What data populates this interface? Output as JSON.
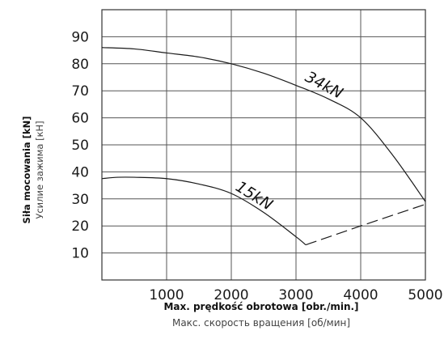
{
  "chart_data": {
    "type": "line",
    "xlabel": "Max. prędkość obrotowa [obr./min.]",
    "xlabel_sub": "Макс. скорость вращения [об/мин]",
    "ylabel": "Siła mocowania [kN]",
    "ylabel_sub": "Усилие зажима [кН]",
    "xlim": [
      0,
      5000
    ],
    "ylim": [
      0,
      100
    ],
    "x_ticks": [
      1000,
      2000,
      3000,
      4000,
      5000
    ],
    "y_ticks": [
      10,
      20,
      30,
      40,
      50,
      60,
      70,
      80,
      90
    ],
    "grid": true,
    "series": [
      {
        "name": "34kN",
        "x": [
          0,
          500,
          1000,
          1500,
          2000,
          2500,
          3000,
          3500,
          4000,
          4500,
          5000
        ],
        "values": [
          86,
          85.5,
          84,
          82.5,
          80,
          76.5,
          72,
          67,
          60,
          46,
          29
        ]
      },
      {
        "name": "15kN",
        "x": [
          0,
          250,
          500,
          1000,
          1500,
          2000,
          2500,
          3000,
          3150
        ],
        "values": [
          37.5,
          38,
          38,
          37.5,
          35.5,
          32,
          25,
          16,
          13
        ]
      },
      {
        "name": "",
        "style": "dashed",
        "x": [
          3150,
          4000,
          5000
        ],
        "values": [
          13,
          20,
          28
        ]
      }
    ]
  }
}
